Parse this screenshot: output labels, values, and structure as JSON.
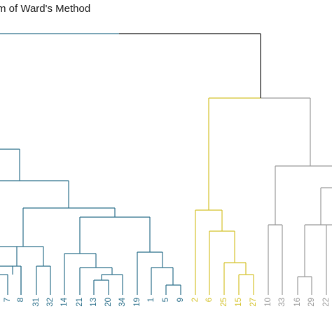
{
  "title": "m of Ward's Method",
  "colors": {
    "root": "#111111",
    "blue": "#2b6f8a",
    "yellow": "#d4c22a",
    "gray": "#9a9a9a"
  },
  "leaves": [
    {
      "label": "7",
      "color": "blue"
    },
    {
      "label": "8",
      "color": "blue"
    },
    {
      "label": "31",
      "color": "blue"
    },
    {
      "label": "32",
      "color": "blue"
    },
    {
      "label": "14",
      "color": "blue"
    },
    {
      "label": "21",
      "color": "blue"
    },
    {
      "label": "13",
      "color": "blue"
    },
    {
      "label": "20",
      "color": "blue"
    },
    {
      "label": "34",
      "color": "blue"
    },
    {
      "label": "19",
      "color": "blue"
    },
    {
      "label": "1",
      "color": "blue"
    },
    {
      "label": "5",
      "color": "blue"
    },
    {
      "label": "9",
      "color": "blue"
    },
    {
      "label": "2",
      "color": "yellow"
    },
    {
      "label": "6",
      "color": "yellow"
    },
    {
      "label": "25",
      "color": "yellow"
    },
    {
      "label": "15",
      "color": "yellow"
    },
    {
      "label": "27",
      "color": "yellow"
    },
    {
      "label": "10",
      "color": "gray"
    },
    {
      "label": "33",
      "color": "gray"
    },
    {
      "label": "16",
      "color": "gray"
    },
    {
      "label": "29",
      "color": "gray"
    },
    {
      "label": "22",
      "color": "gray"
    }
  ]
}
